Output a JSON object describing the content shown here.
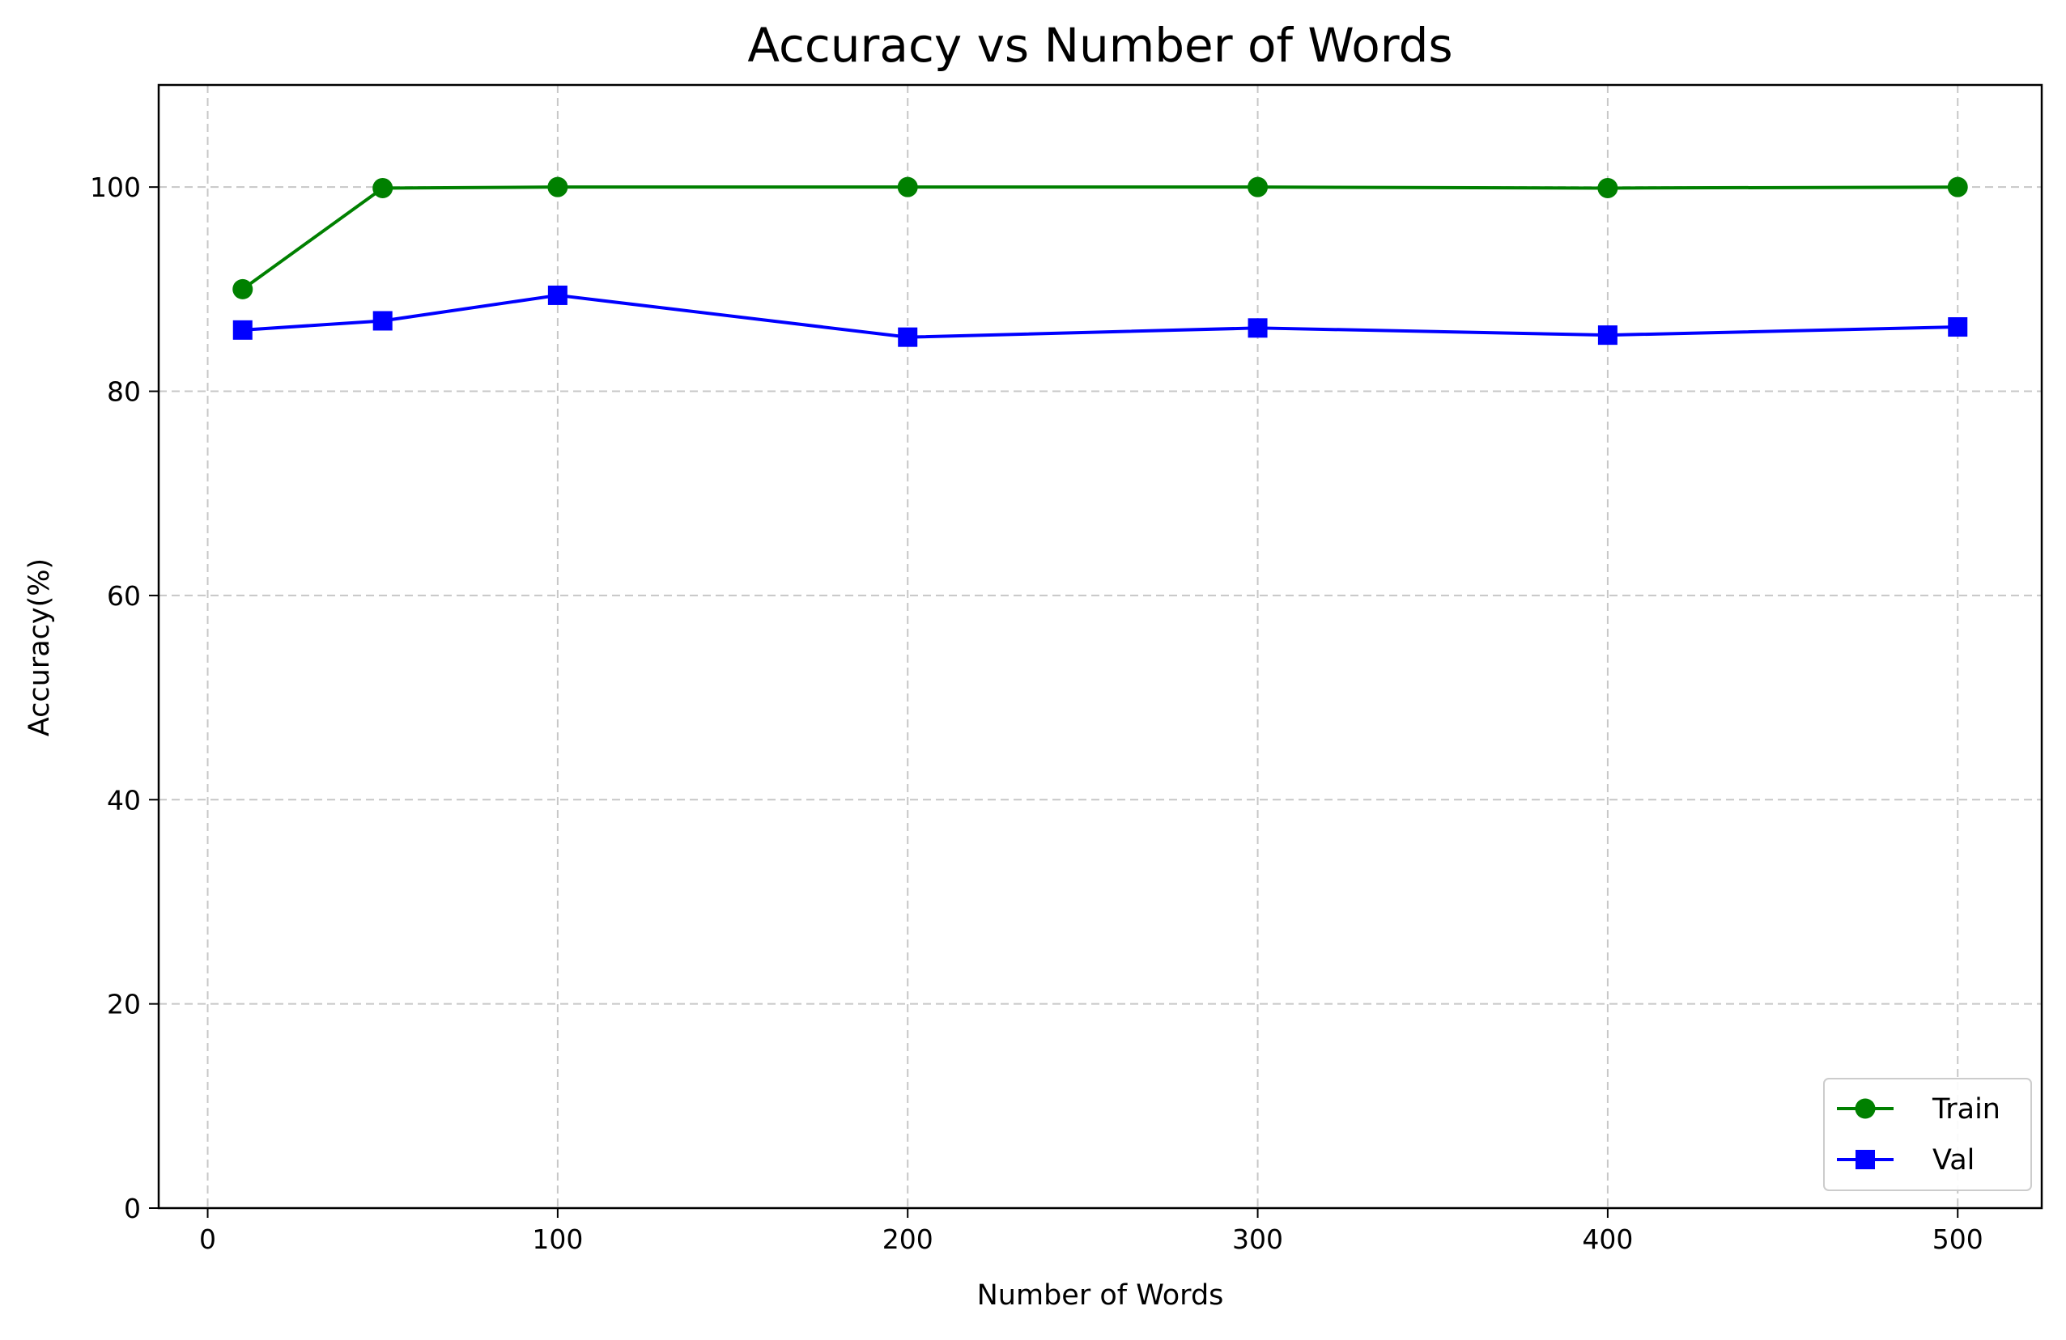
{
  "chart_data": {
    "type": "line",
    "title": "Accuracy vs Number of Words",
    "xlabel": "Number of Words",
    "ylabel": "Accuracy(%)",
    "x": [
      10,
      50,
      100,
      200,
      300,
      400,
      500
    ],
    "xlim": [
      -14,
      524
    ],
    "ylim": [
      0,
      110
    ],
    "xticks": [
      0,
      100,
      200,
      300,
      400,
      500
    ],
    "yticks": [
      0,
      20,
      40,
      60,
      80,
      100
    ],
    "grid": true,
    "legend_position": "lower-right",
    "series": [
      {
        "name": "Train",
        "values": [
          90.0,
          99.9,
          100.0,
          100.0,
          100.0,
          99.9,
          100.0
        ],
        "color": "#008000",
        "marker": "circle"
      },
      {
        "name": "Val",
        "values": [
          86.0,
          86.9,
          89.4,
          85.3,
          86.2,
          85.5,
          86.3
        ],
        "color": "#0000ff",
        "marker": "square"
      }
    ]
  }
}
